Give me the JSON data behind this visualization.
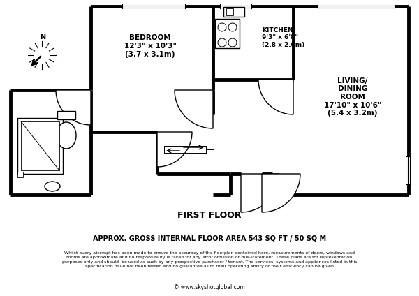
{
  "bg_color": "#ffffff",
  "wall_color": "#000000",
  "wall_lw": 3.5,
  "thin_lw": 1.0,
  "floor_label": "FIRST FLOOR",
  "area_label": "APPROX. GROSS INTERNAL FLOOR AREA 543 SQ FT / 50 SQ M",
  "disclaimer": "Whilst every attempt has been made to ensure the accuracy of the floorplan contained here, measurements of doors, windows and\nrooms are approximate and no responsibility is taken for any error omission or mis-statement. These plans are for representation\npurposes only and should  be used as such by any prospective purchaser / tenant. The services, systems and appliances listed in this\nspecification have not been tested and no guarantee as to their operating ability or their efficiency can be given",
  "copyright": "© www.skyshotglobal.com",
  "bedroom_label": "BEDROOM\n12'3\" x 10'3\"\n(3.7 x 3.1m)",
  "kitchen_label": "KITCHEN\n9'3\" x 6'8\"\n(2.8 x 2.0m)",
  "living_label": "LIVING/\nDINING\nROOM\n17'10\" x 10'6\"\n(5.4 x 3.2m)"
}
